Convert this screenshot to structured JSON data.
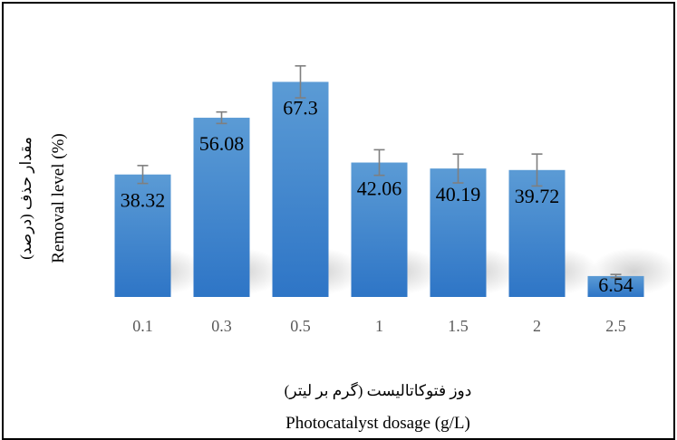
{
  "chart_data": {
    "type": "bar",
    "categories": [
      "0.1",
      "0.3",
      "0.5",
      "1",
      "1.5",
      "2",
      "2.5"
    ],
    "values": [
      38.32,
      56.08,
      67.3,
      42.06,
      40.19,
      39.72,
      6.54
    ],
    "value_labels": [
      "38.32",
      "56.08",
      "67.3",
      "42.06",
      "40.19",
      "39.72",
      "6.54"
    ],
    "error": [
      2.8,
      1.8,
      5.0,
      4.0,
      4.5,
      5.0,
      0.5
    ],
    "ylim": [
      0,
      75
    ],
    "grid": false,
    "legend": "none",
    "xlabel_fa": "دوز فتوکاتالیست (گرم بر لیتر)",
    "xlabel": "Photocatalyst dosage (g/L)",
    "ylabel_fa": "مقدار حذف (درصد)",
    "ylabel": "Removal level (%)",
    "colors": {
      "bar_top": "#5b9bd5",
      "bar_bottom": "#2e75c6",
      "error_bar": "#7f7f7f",
      "tick_text": "#595959"
    }
  }
}
